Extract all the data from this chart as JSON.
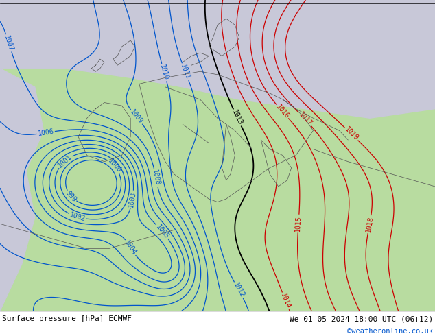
{
  "title_left": "Surface pressure [hPa] ECMWF",
  "title_right": "We 01-05-2024 18:00 UTC (06+12)",
  "copyright": "©weatheronline.co.uk",
  "bg_green": "#b8dca0",
  "bg_gray": "#c8c8d8",
  "blue_color": "#0055cc",
  "red_color": "#cc0000",
  "black_color": "#000000",
  "label_fontsize": 7,
  "footer_fontsize": 8,
  "copyright_fontsize": 7.5,
  "figsize": [
    6.34,
    4.9
  ],
  "dpi": 100
}
